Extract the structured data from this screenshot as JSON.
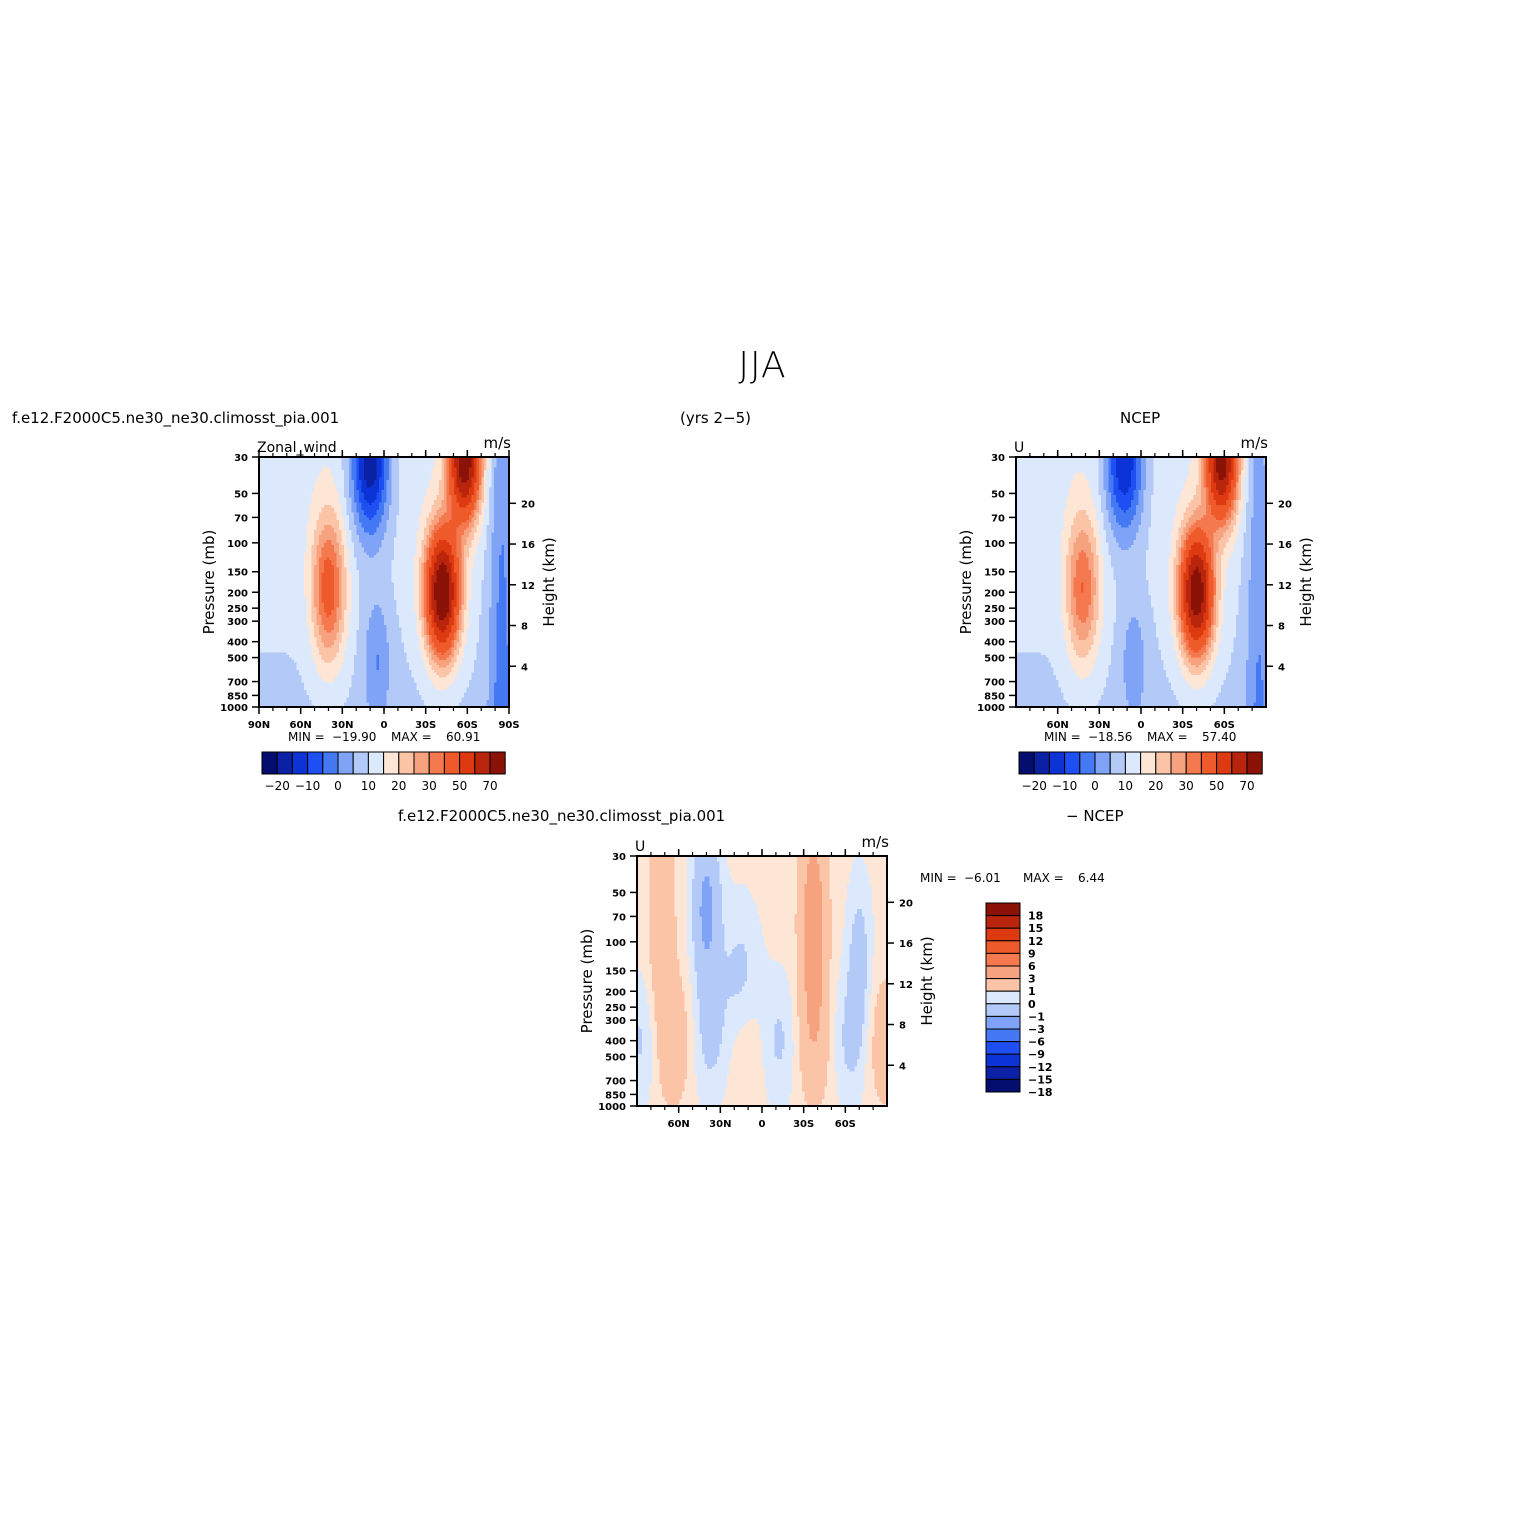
{
  "figure": {
    "title": "JJA",
    "model_case": "f.e12.F2000C5.ne30_ne30.climosst_pia.001",
    "years": "(yrs 2−5)",
    "reference": "NCEP",
    "diff_case": "f.e12.F2000C5.ne30_ne30.climosst_pia.001",
    "diff_reference": "− NCEP"
  },
  "chart_data": [
    {
      "type": "heatmap",
      "panel": "model",
      "variable_label": "Zonal_wind",
      "units_label": "m/s",
      "ylabel": "Pressure (mb)",
      "y2label": "Height (km)",
      "x_ticks": [
        "90N",
        "60N",
        "30N",
        "0",
        "30S",
        "60S",
        "90S"
      ],
      "x_tick_lats": [
        90,
        60,
        30,
        0,
        -30,
        -60,
        -90
      ],
      "xlim": [
        90,
        -90
      ],
      "y_ticks": [
        30,
        50,
        70,
        100,
        150,
        200,
        250,
        300,
        400,
        500,
        700,
        850,
        1000
      ],
      "ylim": [
        1000,
        30
      ],
      "y_scale": "log",
      "height_ticks_km": [
        4,
        8,
        12,
        16,
        20
      ],
      "min_label": "MIN =",
      "min_value": "−19.90",
      "max_label": "MAX =",
      "max_value": "60.91",
      "contour_levels": [
        -25,
        -20,
        -15,
        -10,
        -5,
        0,
        5,
        10,
        15,
        20,
        25,
        30,
        40,
        50,
        60,
        70
      ],
      "colorbar_labels": [
        "−20",
        "−10",
        "0",
        "10",
        "20",
        "30",
        "50",
        "70"
      ],
      "colorbar_orientation": "horizontal"
    },
    {
      "type": "heatmap",
      "panel": "reference",
      "variable_label": "U",
      "units_label": "m/s",
      "ylabel": "Pressure (mb)",
      "y2label": "Height (km)",
      "x_ticks": [
        "60N",
        "30N",
        "0",
        "30S",
        "60S"
      ],
      "x_tick_lats": [
        60,
        30,
        0,
        -30,
        -60
      ],
      "xlim": [
        90,
        -90
      ],
      "y_ticks": [
        30,
        50,
        70,
        100,
        150,
        200,
        250,
        300,
        400,
        500,
        700,
        850,
        1000
      ],
      "ylim": [
        1000,
        30
      ],
      "y_scale": "log",
      "height_ticks_km": [
        4,
        8,
        12,
        16,
        20
      ],
      "min_label": "MIN =",
      "min_value": "−18.56",
      "max_label": "MAX =",
      "max_value": "57.40",
      "contour_levels": [
        -25,
        -20,
        -15,
        -10,
        -5,
        0,
        5,
        10,
        15,
        20,
        25,
        30,
        40,
        50,
        60,
        70
      ],
      "colorbar_labels": [
        "−20",
        "−10",
        "0",
        "10",
        "20",
        "30",
        "50",
        "70"
      ],
      "colorbar_orientation": "horizontal"
    },
    {
      "type": "heatmap",
      "panel": "difference",
      "variable_label": "U",
      "units_label": "m/s",
      "ylabel": "Pressure (mb)",
      "y2label": "Height (km)",
      "x_ticks": [
        "60N",
        "30N",
        "0",
        "30S",
        "60S"
      ],
      "x_tick_lats": [
        60,
        30,
        0,
        -30,
        -60
      ],
      "xlim": [
        90,
        -90
      ],
      "y_ticks": [
        30,
        50,
        70,
        100,
        150,
        200,
        250,
        300,
        400,
        500,
        700,
        850,
        1000
      ],
      "ylim": [
        1000,
        30
      ],
      "y_scale": "log",
      "height_ticks_km": [
        4,
        8,
        12,
        16,
        20
      ],
      "min_label": "MIN =",
      "min_value": "−6.01",
      "max_label": "MAX =",
      "max_value": "6.44",
      "contour_levels": [
        -18,
        -15,
        -12,
        -9,
        -6,
        -3,
        -1,
        0,
        1,
        3,
        6,
        9,
        12,
        15,
        18
      ],
      "colorbar_labels": [
        "18",
        "15",
        "12",
        "9",
        "6",
        "3",
        "1",
        "0",
        "−1",
        "−3",
        "−6",
        "−9",
        "−12",
        "−15",
        "−18"
      ],
      "colorbar_orientation": "vertical"
    }
  ],
  "colors": {
    "abs_palette": [
      "#040e6e",
      "#0a21a6",
      "#0c33d6",
      "#1d4ff2",
      "#4579f4",
      "#7ea3f7",
      "#b3caf8",
      "#dce8fb",
      "#fde6d6",
      "#fbc4a6",
      "#f7a27f",
      "#f4794f",
      "#ef5a2b",
      "#dd3a12",
      "#b8240c",
      "#8a1206"
    ],
    "diff_palette": [
      "#040e6e",
      "#0a21a6",
      "#0c33d6",
      "#1d4ff2",
      "#4579f4",
      "#7ea3f7",
      "#b3caf8",
      "#dce8fb",
      "#fde6d6",
      "#fbc4a6",
      "#f7a27f",
      "#f4794f",
      "#ef5a2b",
      "#dd3a12",
      "#b8240c",
      "#8a1206"
    ]
  }
}
